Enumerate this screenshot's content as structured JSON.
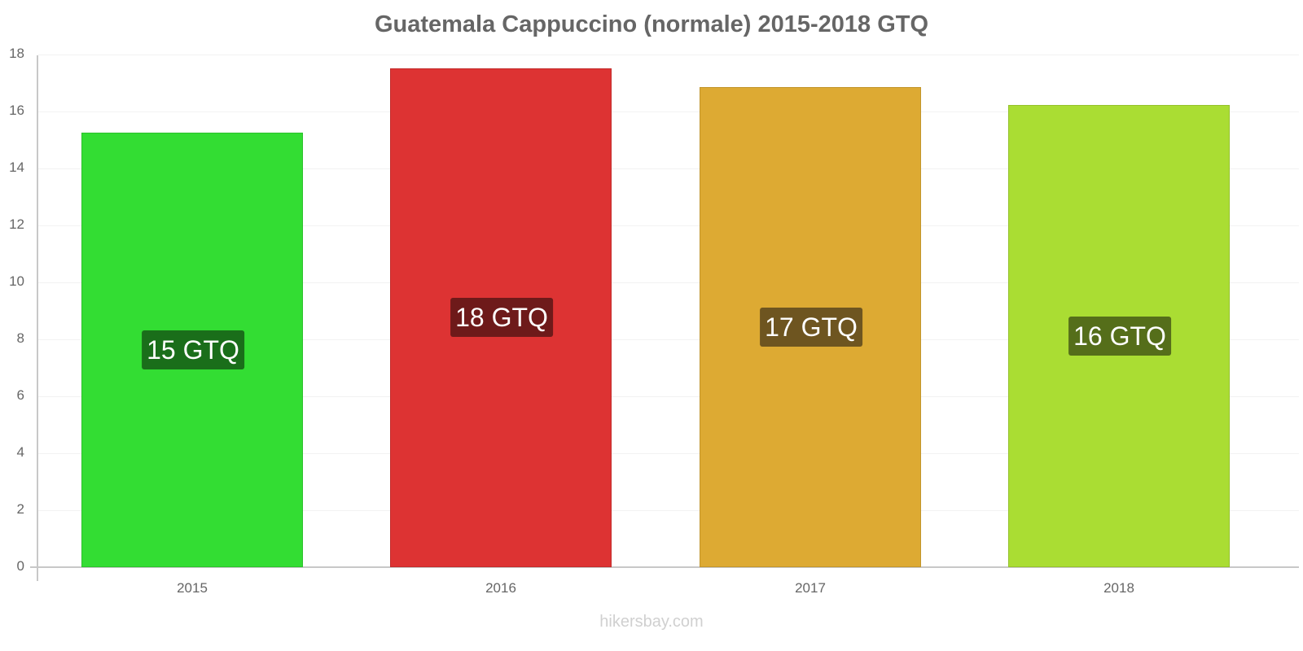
{
  "chart_data": {
    "type": "bar",
    "title": "Guatemala Cappuccino (normale) 2015-2018 GTQ",
    "xlabel": "",
    "ylabel": "",
    "categories": [
      "2015",
      "2016",
      "2017",
      "2018"
    ],
    "values": [
      15.25,
      17.52,
      16.86,
      16.24
    ],
    "data_labels": [
      "15 GTQ",
      "18 GTQ",
      "17 GTQ",
      "16 GTQ"
    ],
    "ylim": [
      0,
      18
    ],
    "yticks": [
      0,
      2,
      4,
      6,
      8,
      10,
      12,
      14,
      16,
      18
    ],
    "grid": true,
    "legend": null,
    "bar_colors": [
      "#33dd33",
      "#dd3333",
      "#ddaa33",
      "#aadd33"
    ],
    "label_bg_colors": [
      "#1a6e1a",
      "#6e1a1a",
      "#6e5520",
      "#556e1a"
    ]
  },
  "watermark": "hikersbay.com"
}
